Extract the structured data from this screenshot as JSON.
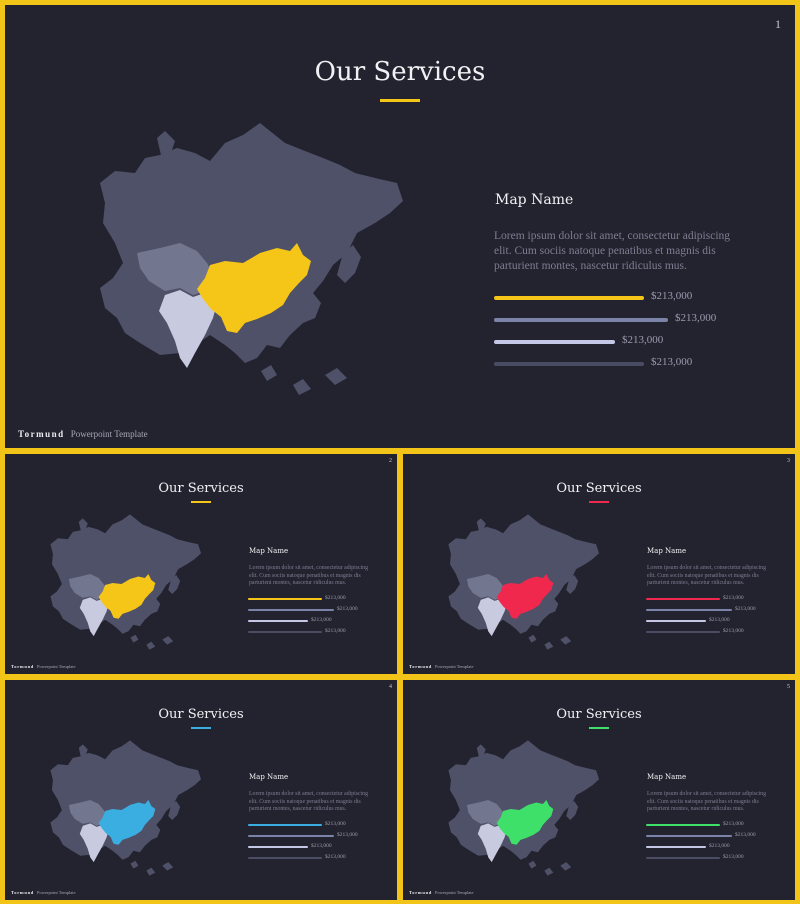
{
  "slides": [
    {
      "number": "1",
      "title": "Our Services",
      "accent": "#f5c518",
      "map_name": "Map Name",
      "paragraph": "Lorem ipsum dolor sit amet, consectetur adipiscing elit. Cum sociis natoque penatibus et magnis dis parturient montes, nascetur ridiculus mus.",
      "bars": [
        {
          "value": "$213,000",
          "color": "#f5c518",
          "fraction": 0.62
        },
        {
          "value": "$213,000",
          "color": "#7c83a8",
          "fraction": 0.72
        },
        {
          "value": "$213,000",
          "color": "#c4c8e6",
          "fraction": 0.5
        },
        {
          "value": "$213,000",
          "color": "#4a4c64",
          "fraction": 0.62
        }
      ],
      "footer": {
        "brand": "Tormund",
        "subtitle": "Powerpoint  Template"
      }
    },
    {
      "number": "2",
      "title": "Our Services",
      "accent": "#f5c518",
      "map_name": "Map Name",
      "paragraph": "Lorem ipsum dolor sit amet, consectetur adipiscing elit. Cum sociis natoque penatibus et magnis dis parturient montes, nascetur ridiculus mus.",
      "bars": [
        {
          "value": "$213,000",
          "color": "#f5c518",
          "fraction": 0.62
        },
        {
          "value": "$213,000",
          "color": "#7c83a8",
          "fraction": 0.72
        },
        {
          "value": "$213,000",
          "color": "#c4c8e6",
          "fraction": 0.5
        },
        {
          "value": "$213,000",
          "color": "#4a4c64",
          "fraction": 0.62
        }
      ],
      "footer": {
        "brand": "Tormund",
        "subtitle": "Powerpoint  Template"
      }
    },
    {
      "number": "3",
      "title": "Our Services",
      "accent": "#f0284e",
      "map_name": "Map Name",
      "paragraph": "Lorem ipsum dolor sit amet, consectetur adipiscing elit. Cum sociis natoque penatibus et magnis dis parturient montes, nascetur ridiculus mus.",
      "bars": [
        {
          "value": "$213,000",
          "color": "#f0284e",
          "fraction": 0.62
        },
        {
          "value": "$213,000",
          "color": "#7c83a8",
          "fraction": 0.72
        },
        {
          "value": "$213,000",
          "color": "#c4c8e6",
          "fraction": 0.5
        },
        {
          "value": "$213,000",
          "color": "#4a4c64",
          "fraction": 0.62
        }
      ],
      "footer": {
        "brand": "Tormund",
        "subtitle": "Powerpoint  Template"
      }
    },
    {
      "number": "4",
      "title": "Our Services",
      "accent": "#3aaee0",
      "map_name": "Map Name",
      "paragraph": "Lorem ipsum dolor sit amet, consectetur adipiscing elit. Cum sociis natoque penatibus et magnis dis parturient montes, nascetur ridiculus mus.",
      "bars": [
        {
          "value": "$213,000",
          "color": "#3aaee0",
          "fraction": 0.62
        },
        {
          "value": "$213,000",
          "color": "#7c83a8",
          "fraction": 0.72
        },
        {
          "value": "$213,000",
          "color": "#c4c8e6",
          "fraction": 0.5
        },
        {
          "value": "$213,000",
          "color": "#4a4c64",
          "fraction": 0.62
        }
      ],
      "footer": {
        "brand": "Tormund",
        "subtitle": "Powerpoint  Template"
      }
    },
    {
      "number": "5",
      "title": "Our Services",
      "accent": "#3ee06a",
      "map_name": "Map Name",
      "paragraph": "Lorem ipsum dolor sit amet, consectetur adipiscing elit. Cum sociis natoque penatibus et magnis dis parturient montes, nascetur ridiculus mus.",
      "bars": [
        {
          "value": "$213,000",
          "color": "#3ee06a",
          "fraction": 0.62
        },
        {
          "value": "$213,000",
          "color": "#7c83a8",
          "fraction": 0.72
        },
        {
          "value": "$213,000",
          "color": "#c4c8e6",
          "fraction": 0.5
        },
        {
          "value": "$213,000",
          "color": "#4a4c64",
          "fraction": 0.62
        }
      ],
      "footer": {
        "brand": "Tormund",
        "subtitle": "Powerpoint  Template"
      }
    }
  ],
  "map_colors": {
    "land": "#4f5168",
    "region": "#73768f",
    "india": "#c8cae0"
  }
}
